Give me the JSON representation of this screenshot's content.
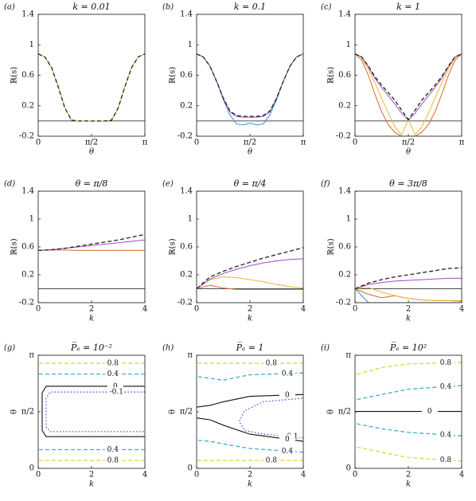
{
  "chart_data": [
    {
      "type": "line",
      "panel_label": "(a)",
      "title": "k = 0.01",
      "xlabel": "θ",
      "ylabel": "ℝ(s)",
      "x": [
        0,
        0.196,
        0.393,
        0.589,
        0.785,
        0.982,
        1.178,
        1.374,
        1.571,
        1.767,
        1.963,
        2.16,
        2.356,
        2.553,
        2.749,
        2.945,
        3.142
      ],
      "xlim": [
        0,
        3.1416
      ],
      "xticks": [
        0,
        {
          "value": 1.5708,
          "label": "π/2"
        },
        {
          "value": 3.1416,
          "label": "π"
        }
      ],
      "ylim": [
        -0.2,
        1.4
      ],
      "yticks": [
        -0.2,
        0.2,
        0.6,
        1,
        1.4
      ],
      "hline": 0,
      "series": [
        {
          "color": "#e8b830",
          "values": [
            0.88,
            0.84,
            0.7,
            0.45,
            0.17,
            0.01,
            0,
            0,
            0,
            0,
            0,
            0.01,
            0.17,
            0.45,
            0.7,
            0.84,
            0.88
          ]
        },
        {
          "color": "#222222",
          "dash": true,
          "values": [
            0.88,
            0.84,
            0.7,
            0.45,
            0.17,
            0.01,
            0,
            0,
            0,
            0,
            0,
            0.01,
            0.17,
            0.45,
            0.7,
            0.84,
            0.88
          ]
        }
      ]
    },
    {
      "type": "line",
      "panel_label": "(b)",
      "title": "k = 0.1",
      "xlabel": "θ",
      "ylabel": "ℝ(s)",
      "x": [
        0,
        0.196,
        0.393,
        0.589,
        0.785,
        0.982,
        1.178,
        1.374,
        1.571,
        1.767,
        1.963,
        2.16,
        2.356,
        2.553,
        2.749,
        2.945,
        3.142
      ],
      "xlim": [
        0,
        3.1416
      ],
      "xticks": [
        0,
        {
          "value": 1.5708,
          "label": "π/2"
        },
        {
          "value": 3.1416,
          "label": "π"
        }
      ],
      "ylim": [
        -0.2,
        1.4
      ],
      "yticks": [
        -0.2,
        0.2,
        0.6,
        1,
        1.4
      ],
      "hline": 0,
      "series": [
        {
          "color": "#3a8fd0",
          "values": [
            0.88,
            0.84,
            0.72,
            0.52,
            0.28,
            0.08,
            -0.04,
            -0.05,
            -0.03,
            -0.05,
            -0.04,
            0.08,
            0.28,
            0.52,
            0.72,
            0.84,
            0.88
          ]
        },
        {
          "color": "#9b4fc3",
          "values": [
            0.88,
            0.84,
            0.72,
            0.52,
            0.3,
            0.12,
            0.06,
            0.05,
            0.05,
            0.05,
            0.06,
            0.12,
            0.3,
            0.52,
            0.72,
            0.84,
            0.88
          ]
        },
        {
          "color": "#222222",
          "dash": true,
          "values": [
            0.88,
            0.84,
            0.72,
            0.52,
            0.3,
            0.13,
            0.07,
            0.06,
            0.06,
            0.06,
            0.07,
            0.13,
            0.3,
            0.52,
            0.72,
            0.84,
            0.88
          ]
        }
      ]
    },
    {
      "type": "line",
      "panel_label": "(c)",
      "title": "k = 1",
      "xlabel": "θ",
      "ylabel": "ℝ(s)",
      "x": [
        0,
        0.196,
        0.393,
        0.589,
        0.785,
        0.982,
        1.178,
        1.374,
        1.571,
        1.767,
        1.963,
        2.16,
        2.356,
        2.553,
        2.749,
        2.945,
        3.142
      ],
      "xlim": [
        0,
        3.1416
      ],
      "xticks": [
        0,
        {
          "value": 1.5708,
          "label": "π/2"
        },
        {
          "value": 3.1416,
          "label": "π"
        }
      ],
      "ylim": [
        -0.2,
        1.4
      ],
      "yticks": [
        -0.2,
        0.2,
        0.6,
        1,
        1.4
      ],
      "hline": 0,
      "series": [
        {
          "color": "#d9682c",
          "values": [
            0.88,
            0.8,
            0.6,
            0.35,
            0.12,
            -0.05,
            -0.15,
            -0.2,
            -0.2,
            -0.2,
            -0.15,
            -0.05,
            0.12,
            0.35,
            0.6,
            0.8,
            0.88
          ]
        },
        {
          "color": "#e8b830",
          "values": [
            0.88,
            0.83,
            0.68,
            0.5,
            0.3,
            0.1,
            -0.08,
            -0.18,
            0.02,
            -0.18,
            -0.08,
            0.1,
            0.3,
            0.5,
            0.68,
            0.83,
            0.88
          ]
        },
        {
          "color": "#9b4fc3",
          "values": [
            0.88,
            0.84,
            0.71,
            0.56,
            0.44,
            0.33,
            0.22,
            0.1,
            0.01,
            0.1,
            0.22,
            0.33,
            0.44,
            0.56,
            0.71,
            0.84,
            0.88
          ]
        },
        {
          "color": "#222222",
          "dash": true,
          "values": [
            0.88,
            0.84,
            0.72,
            0.58,
            0.47,
            0.37,
            0.27,
            0.14,
            0.02,
            0.14,
            0.27,
            0.37,
            0.47,
            0.58,
            0.72,
            0.84,
            0.88
          ]
        }
      ]
    },
    {
      "type": "line",
      "panel_label": "(d)",
      "title": "θ = π/8",
      "xlabel": "k",
      "ylabel": "ℝ(s)",
      "x": [
        0,
        0.5,
        1,
        1.5,
        2,
        2.5,
        3,
        3.5,
        4
      ],
      "xlim": [
        0,
        4
      ],
      "xticks": [
        0,
        2,
        4
      ],
      "ylim": [
        -0.2,
        1.4
      ],
      "yticks": [
        -0.2,
        0.2,
        0.6,
        1,
        1.4
      ],
      "hline": 0,
      "series": [
        {
          "color": "#d9682c",
          "values": [
            0.55,
            0.555,
            0.555,
            0.55,
            0.55,
            0.55,
            0.55,
            0.55,
            0.55
          ]
        },
        {
          "color": "#9b4fc3",
          "values": [
            0.55,
            0.56,
            0.58,
            0.6,
            0.62,
            0.64,
            0.66,
            0.68,
            0.7
          ]
        },
        {
          "color": "#222222",
          "dash": true,
          "values": [
            0.55,
            0.56,
            0.58,
            0.61,
            0.64,
            0.67,
            0.7,
            0.74,
            0.78
          ]
        }
      ]
    },
    {
      "type": "line",
      "panel_label": "(e)",
      "title": "θ = π/4",
      "xlabel": "k",
      "ylabel": "ℝ(s)",
      "x": [
        0,
        0.5,
        1,
        1.5,
        2,
        2.5,
        3,
        3.5,
        4
      ],
      "xlim": [
        0,
        4
      ],
      "xticks": [
        0,
        2,
        4
      ],
      "ylim": [
        -0.2,
        1.4
      ],
      "yticks": [
        -0.2,
        0.2,
        0.6,
        1,
        1.4
      ],
      "hline": 0,
      "series": [
        {
          "color": "#d9682c",
          "values": [
            0,
            0.05,
            0.01,
            -0.01,
            -0.01,
            -0.01,
            -0.01,
            -0.01,
            -0.01
          ]
        },
        {
          "color": "#e8b830",
          "values": [
            0,
            0.13,
            0.17,
            0.16,
            0.13,
            0.1,
            0.06,
            0.03,
            0.01
          ]
        },
        {
          "color": "#9b4fc3",
          "values": [
            0,
            0.14,
            0.22,
            0.28,
            0.33,
            0.37,
            0.4,
            0.42,
            0.43
          ]
        },
        {
          "color": "#222222",
          "dash": true,
          "values": [
            0,
            0.17,
            0.25,
            0.32,
            0.38,
            0.44,
            0.49,
            0.54,
            0.59
          ]
        }
      ]
    },
    {
      "type": "line",
      "panel_label": "(f)",
      "title": "θ = 3π/8",
      "xlabel": "k",
      "ylabel": "ℝ(s)",
      "x": [
        0,
        0.5,
        1,
        1.5,
        2,
        2.5,
        3,
        3.5,
        4
      ],
      "xlim": [
        0,
        4
      ],
      "xticks": [
        0,
        2,
        4
      ],
      "ylim": [
        -0.2,
        1.4
      ],
      "yticks": [
        -0.2,
        0.2,
        0.6,
        1,
        1.4
      ],
      "hline": 0,
      "series": [
        {
          "color": "#3a8fd0",
          "values": [
            0,
            -0.2,
            -0.2,
            -0.2,
            -0.2,
            -0.2,
            -0.2,
            -0.2,
            -0.2
          ]
        },
        {
          "color": "#d9682c",
          "values": [
            0,
            -0.08,
            -0.13,
            -0.1,
            -0.14,
            -0.16,
            -0.17,
            -0.17,
            -0.18
          ]
        },
        {
          "color": "#e8b830",
          "values": [
            0,
            0.02,
            -0.05,
            -0.1,
            -0.14,
            -0.16,
            -0.17,
            -0.17,
            -0.17
          ]
        },
        {
          "color": "#9b4fc3",
          "values": [
            0,
            0.06,
            0.09,
            0.11,
            0.12,
            0.13,
            0.14,
            0.15,
            0.15
          ]
        },
        {
          "color": "#222222",
          "dash": true,
          "values": [
            0,
            0.08,
            0.13,
            0.17,
            0.2,
            0.23,
            0.26,
            0.29,
            0.3
          ]
        }
      ]
    },
    {
      "type": "contour",
      "panel_label": "(g)",
      "title": "P̅ₑ = 10⁻²",
      "xlabel": "k",
      "ylabel": "θ",
      "xlim": [
        0,
        4
      ],
      "xticks": [
        0,
        2,
        4
      ],
      "ylim": [
        0,
        3.1416
      ],
      "yticks": [
        0,
        {
          "value": 1.5708,
          "label": "π/2"
        },
        {
          "value": 3.1416,
          "label": "π"
        }
      ],
      "contours": [
        {
          "level": 0.8,
          "color": "#d8d83a",
          "style": "dashed",
          "x": [
            4,
            0
          ],
          "y": [
            2.92,
            2.92
          ]
        },
        {
          "level": 0.4,
          "color": "#3fb0c8",
          "style": "dashed",
          "x": [
            4,
            0
          ],
          "y": [
            2.62,
            2.62
          ]
        },
        {
          "level": 0,
          "color": "#111111",
          "style": "solid",
          "x": [
            4,
            0.3,
            0.15,
            0.15,
            0.3,
            4
          ],
          "y": [
            2.28,
            2.28,
            2.1,
            1.05,
            0.88,
            0.88
          ]
        },
        {
          "level": -0.1,
          "color": "#3b5bd6",
          "style": "dotted",
          "x": [
            4,
            0.45,
            0.3,
            0.3,
            0.45,
            4
          ],
          "y": [
            2.12,
            2.12,
            1.95,
            1.15,
            1.02,
            1.02
          ]
        },
        {
          "level": 0.4,
          "color": "#3fb0c8",
          "style": "dashed",
          "x": [
            4,
            0
          ],
          "y": [
            0.52,
            0.52
          ]
        },
        {
          "level": 0.8,
          "color": "#d8d83a",
          "style": "dashed",
          "x": [
            4,
            0
          ],
          "y": [
            0.22,
            0.22
          ]
        }
      ]
    },
    {
      "type": "contour",
      "panel_label": "(h)",
      "title": "P̅ₑ = 1",
      "xlabel": "k",
      "ylabel": "θ",
      "xlim": [
        0,
        4
      ],
      "xticks": [
        0,
        2,
        4
      ],
      "ylim": [
        0,
        3.1416
      ],
      "yticks": [
        0,
        {
          "value": 1.5708,
          "label": "π/2"
        },
        {
          "value": 3.1416,
          "label": "π"
        }
      ],
      "contours": [
        {
          "level": 0.8,
          "color": "#d8d83a",
          "style": "dashed",
          "x": [
            4,
            0
          ],
          "y": [
            2.92,
            2.92
          ]
        },
        {
          "level": 0.4,
          "color": "#3fb0c8",
          "style": "dashed",
          "x": [
            4,
            2,
            1,
            0
          ],
          "y": [
            2.65,
            2.6,
            2.45,
            2.55
          ]
        },
        {
          "level": 0,
          "color": "#111111",
          "style": "solid",
          "x": [
            4,
            2,
            1,
            0.5,
            0
          ],
          "y": [
            2.05,
            2.0,
            1.85,
            1.75,
            1.7
          ]
        },
        {
          "level": -0.1,
          "color": "#3b5bd6",
          "style": "dotted",
          "x": [
            4,
            2.5,
            1.8,
            1.6,
            1.8,
            2.5,
            4
          ],
          "y": [
            0.85,
            0.95,
            1.05,
            1.3,
            1.6,
            1.85,
            1.95
          ]
        },
        {
          "level": 0,
          "color": "#111111",
          "style": "solid",
          "x": [
            4,
            2,
            1,
            0.5,
            0
          ],
          "y": [
            0.75,
            0.95,
            1.2,
            1.35,
            1.4
          ]
        },
        {
          "level": 0.4,
          "color": "#3fb0c8",
          "style": "dashed",
          "x": [
            4,
            2,
            1,
            0.5,
            0
          ],
          "y": [
            0.45,
            0.55,
            0.68,
            0.75,
            0.78
          ]
        },
        {
          "level": 0.8,
          "color": "#d8d83a",
          "style": "dashed",
          "x": [
            4,
            0
          ],
          "y": [
            0.22,
            0.22
          ]
        }
      ]
    },
    {
      "type": "contour",
      "panel_label": "(i)",
      "title": "P̅ₑ = 10²",
      "xlabel": "k",
      "ylabel": "θ",
      "xlim": [
        0,
        4
      ],
      "xticks": [
        0,
        2,
        4
      ],
      "ylim": [
        0,
        3.1416
      ],
      "yticks": [
        0,
        {
          "value": 1.5708,
          "label": "π/2"
        },
        {
          "value": 3.1416,
          "label": "π"
        }
      ],
      "contours": [
        {
          "level": 0.8,
          "color": "#d8d83a",
          "style": "dashed",
          "x": [
            4,
            2,
            1,
            0
          ],
          "y": [
            2.95,
            2.9,
            2.8,
            2.6
          ]
        },
        {
          "level": 0.4,
          "color": "#3fb0c8",
          "style": "dashed",
          "x": [
            4,
            2,
            1,
            0.3,
            0
          ],
          "y": [
            2.3,
            2.2,
            2.05,
            1.95,
            1.9
          ]
        },
        {
          "level": 0,
          "color": "#111111",
          "style": "solid",
          "x": [
            4,
            0
          ],
          "y": [
            1.58,
            1.58
          ]
        },
        {
          "level": 0.4,
          "color": "#3fb0c8",
          "style": "dashed",
          "x": [
            4,
            2,
            1,
            0.3,
            0
          ],
          "y": [
            0.9,
            1.0,
            1.1,
            1.2,
            1.25
          ]
        },
        {
          "level": 0.8,
          "color": "#d8d83a",
          "style": "dashed",
          "x": [
            4,
            2,
            1,
            0
          ],
          "y": [
            0.2,
            0.3,
            0.45,
            0.6
          ]
        }
      ]
    }
  ]
}
